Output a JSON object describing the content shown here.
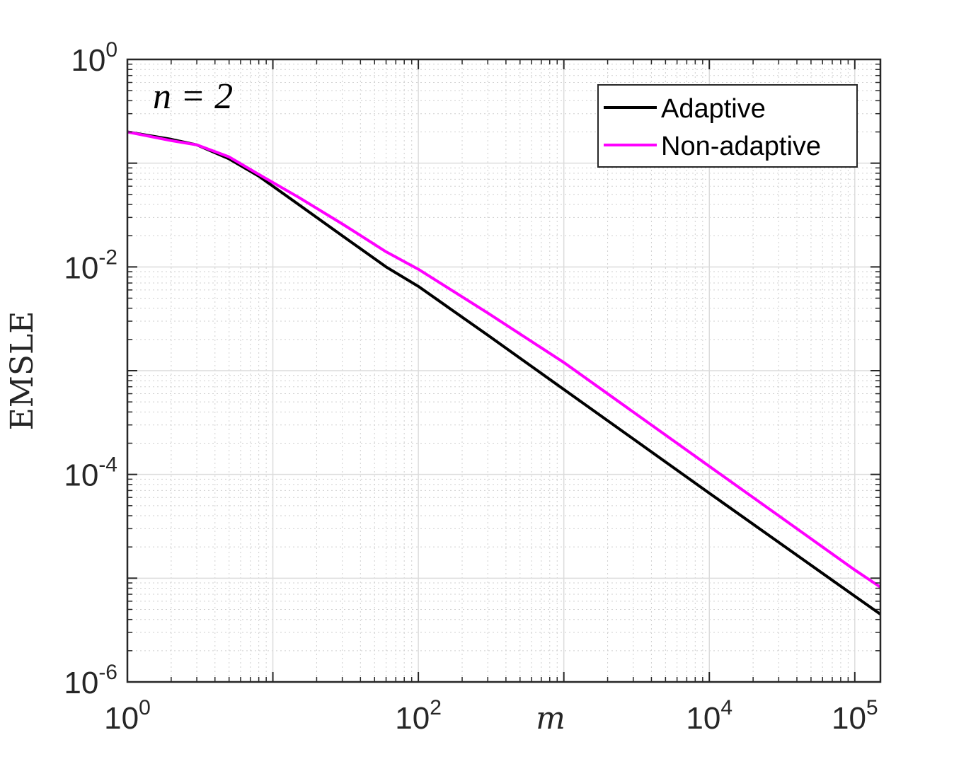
{
  "chart_data": {
    "type": "line",
    "xlabel": "m",
    "ylabel": "EMSLE",
    "xscale": "log",
    "yscale": "log",
    "xlim": [
      1,
      150000
    ],
    "ylim": [
      1e-06,
      1
    ],
    "grid": true,
    "minor_grid": true,
    "legend_position": "top-right",
    "annotation": {
      "text": "n = 2",
      "position": "top-left"
    },
    "x_ticks": [
      {
        "value": 1,
        "base": "10",
        "exp": "0"
      },
      {
        "value": 100,
        "base": "10",
        "exp": "2"
      },
      {
        "value": 10000,
        "base": "10",
        "exp": "4"
      },
      {
        "value": 100000,
        "base": "10",
        "exp": "5"
      }
    ],
    "y_ticks": [
      {
        "value": 1,
        "base": "10",
        "exp": "0"
      },
      {
        "value": 0.01,
        "base": "10",
        "exp": "-2"
      },
      {
        "value": 0.0001,
        "base": "10",
        "exp": "-4"
      },
      {
        "value": 1e-06,
        "base": "10",
        "exp": "-6"
      }
    ],
    "series": [
      {
        "name": "Adaptive",
        "color": "#000000",
        "x": [
          1,
          2,
          3,
          5,
          8,
          15,
          30,
          60,
          100,
          300,
          1000,
          10000,
          100000,
          150000
        ],
        "y": [
          0.2,
          0.17,
          0.15,
          0.11,
          0.075,
          0.04,
          0.02,
          0.01,
          0.0065,
          0.0022,
          0.00066,
          6.6e-05,
          6.7e-06,
          4.5e-06
        ]
      },
      {
        "name": "Non-adaptive",
        "color": "#ff00ff",
        "x": [
          1,
          2,
          3,
          5,
          8,
          15,
          30,
          60,
          100,
          300,
          1000,
          10000,
          100000,
          150000
        ],
        "y": [
          0.2,
          0.165,
          0.15,
          0.115,
          0.078,
          0.047,
          0.026,
          0.014,
          0.0095,
          0.0036,
          0.0012,
          0.00012,
          1.2e-05,
          8.2e-06
        ]
      }
    ]
  }
}
